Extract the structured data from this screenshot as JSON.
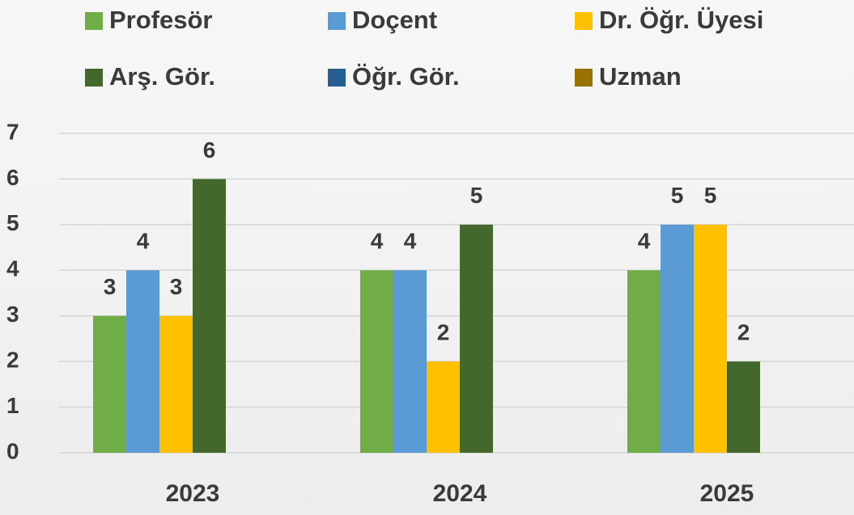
{
  "chart_data": {
    "type": "bar",
    "categories": [
      "2023",
      "2024",
      "2025"
    ],
    "series": [
      {
        "name": "Profesör",
        "color": "#70ad47",
        "values": [
          3,
          4,
          4
        ]
      },
      {
        "name": "Doçent",
        "color": "#5b9bd5",
        "values": [
          4,
          4,
          5
        ]
      },
      {
        "name": "Dr. Öğr. Üyesi",
        "color": "#ffc000",
        "values": [
          3,
          2,
          5
        ]
      },
      {
        "name": "Arş. Gör.",
        "color": "#43682b",
        "values": [
          6,
          5,
          2
        ]
      },
      {
        "name": "Öğr. Gör.",
        "color": "#255e91",
        "values": [
          null,
          null,
          null
        ]
      },
      {
        "name": "Uzman",
        "color": "#997300",
        "values": [
          null,
          null,
          null
        ]
      }
    ],
    "ylim": [
      0,
      7
    ],
    "yticks": [
      0,
      1,
      2,
      3,
      4,
      5,
      6,
      7
    ],
    "grid": true,
    "legend": "top"
  }
}
